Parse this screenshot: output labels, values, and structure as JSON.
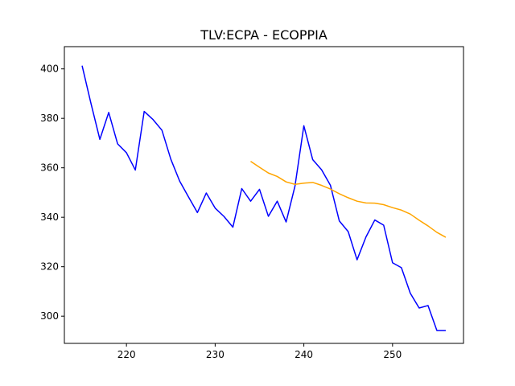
{
  "chart_data": {
    "type": "line",
    "title": "TLV:ECPA - ECOPPIA",
    "xlabel": "",
    "ylabel": "",
    "xlim": [
      213.0,
      258.0
    ],
    "ylim": [
      289.0,
      409.0
    ],
    "x_ticks": [
      220,
      230,
      240,
      250
    ],
    "y_ticks": [
      300,
      320,
      340,
      360,
      380,
      400
    ],
    "grid": false,
    "legend": "none",
    "series": [
      {
        "color": "#0000ff",
        "x": [
          215,
          216,
          217,
          218,
          219,
          220,
          221,
          222,
          223,
          224,
          225,
          226,
          227,
          228,
          229,
          230,
          231,
          232,
          233,
          234,
          235,
          236,
          237,
          238,
          239,
          240,
          241,
          242,
          243,
          244,
          245,
          246,
          247,
          248,
          249,
          250,
          251,
          252,
          253,
          254,
          255,
          256
        ],
        "values": [
          401.3,
          386.0,
          371.5,
          382.4,
          369.7,
          366.1,
          359.1,
          382.8,
          379.5,
          375.2,
          363.5,
          354.6,
          348.2,
          341.9,
          349.8,
          343.7,
          340.3,
          336.0,
          351.6,
          346.5,
          351.3,
          340.4,
          346.5,
          338.1,
          352.6,
          377.0,
          363.3,
          359.2,
          352.9,
          338.5,
          334.2,
          322.8,
          332.0,
          338.9,
          336.8,
          321.6,
          319.6,
          309.3,
          303.3,
          304.3,
          294.2,
          294.2
        ]
      },
      {
        "color": "#ffa500",
        "x": [
          234,
          235,
          236,
          237,
          238,
          239,
          240,
          241,
          242,
          243,
          244,
          245,
          246,
          247,
          248,
          249,
          250,
          251,
          252,
          253,
          254,
          255,
          256
        ],
        "values": [
          362.6,
          360.2,
          357.9,
          356.5,
          354.3,
          353.3,
          353.8,
          354.1,
          352.9,
          351.4,
          349.5,
          347.9,
          346.5,
          345.8,
          345.7,
          345.1,
          343.9,
          342.9,
          341.3,
          338.8,
          336.5,
          333.9,
          331.9
        ]
      }
    ]
  }
}
